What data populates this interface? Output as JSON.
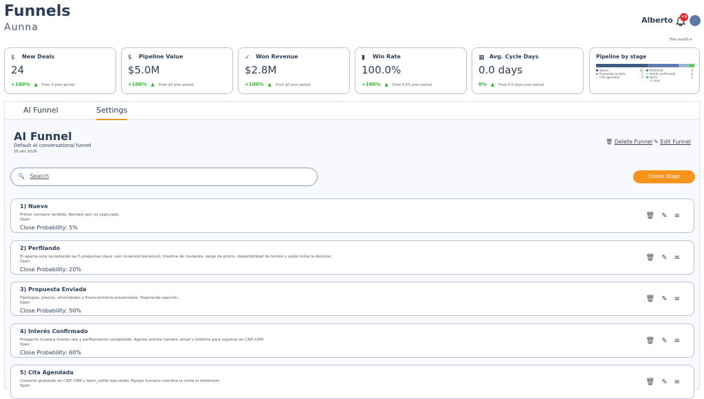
{
  "header": {
    "title": "Funnels",
    "subtitle": "Aunna",
    "user": "Alberto",
    "badge": "+9",
    "period": "This month"
  },
  "kpis": [
    {
      "label": "New Deals",
      "value": "24",
      "change": "+100%",
      "note": "From 0 prev period"
    },
    {
      "label": "Pipeline Value",
      "value": "$5.0M",
      "change": "+100%",
      "note": "From $0 prev period"
    },
    {
      "label": "Won Revenue",
      "value": "$2.8M",
      "change": "+100%",
      "note": "From $0 prev period"
    },
    {
      "label": "Win Rate",
      "value": "100.0%",
      "change": "+100%",
      "note": "From 0.0% prev period"
    },
    {
      "label": "Avg. Cycle Days",
      "value": "0.0 days",
      "change": "0%",
      "note": "From 0.0 days prev period"
    }
  ],
  "pipeline": {
    "title": "Pipeline by stage",
    "stages": [
      {
        "name": "Nuevo",
        "count": 10,
        "color": "#3d5a80"
      },
      {
        "name": "Perfilando",
        "count": 6,
        "color": "#5b7bb0"
      },
      {
        "name": "Propuesta enviada",
        "count": 2,
        "color": "#9db4d6"
      },
      {
        "name": "Interés confirmado",
        "count": 0,
        "color": "#c9d6ea"
      },
      {
        "name": "Cita agendada",
        "count": 0,
        "color": "#dfe6f1"
      },
      {
        "name": "Venta",
        "count": 1,
        "color": "#5ccf5c"
      }
    ],
    "more": "+1 más"
  },
  "tabs": [
    "AI Funnel",
    "Settings"
  ],
  "funnel": {
    "title": "AI Funnel",
    "description": "Default AI conversational funnel",
    "date": "28 abr 2026",
    "delete": "Delete Funnel",
    "edit": "Edit Funnel",
    "search": "Search",
    "create": "Create Stage"
  },
  "stages": [
    {
      "title": "1) Nuevo",
      "description": "Primer contacto recibido. Nombre aún no capturado.",
      "status": "Open",
      "probability": "Close Probability: 5%"
    },
    {
      "title": "2) Perfilando",
      "description": "El agente está recopilando las 5 preguntas clave: uso (inversión/personal), timeline de mudanza, rango de precio, disponibilidad de fondos y quién toma la decisión.",
      "status": "Open",
      "probability": "Close Probability: 20%"
    },
    {
      "title": "3) Propuesta Enviada",
      "description": "Tipologías, precios, amenidades y financiamiento presentados. Esperando reacción.",
      "status": "Open",
      "probability": "Close Probability: 50%"
    },
    {
      "title": "4) Interés Confirmado",
      "description": "Prospecto muestra interés real y perfilamiento completado. Agente solicita nombre, email y teléfono para registrar en CAPI CRM.",
      "status": "Open",
      "probability": "Close Probability: 60%"
    },
    {
      "title": "5) Cita Agendada",
      "description": "Contacto guardado en CAPI CRM y team_notify ejecutado. Equipo humano coordina la visita al showroom.",
      "status": "Open",
      "probability": ""
    }
  ]
}
